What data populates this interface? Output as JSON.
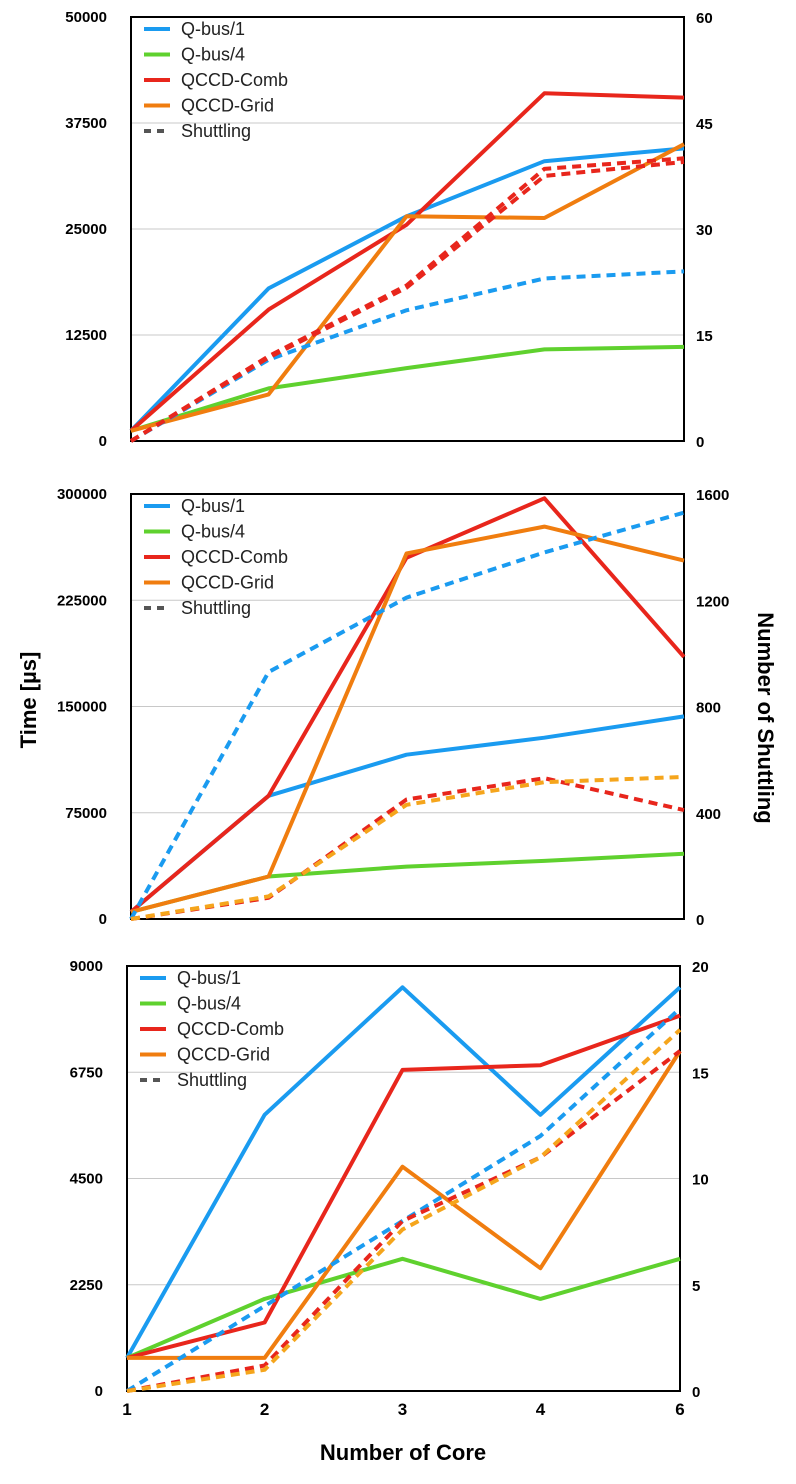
{
  "figure": {
    "ylabel_left": "Time [µs]",
    "ylabel_right": "Number of Shuttling",
    "xlabel": "Number of Core",
    "x_ticks": [
      "1",
      "2",
      "3",
      "4",
      "6"
    ]
  },
  "legend": [
    {
      "label": "Q-bus/1",
      "color": "#1a9bf0",
      "dashed": false
    },
    {
      "label": "Q-bus/4",
      "color": "#5fd12e",
      "dashed": false
    },
    {
      "label": "QCCD-Comb",
      "color": "#e8261c",
      "dashed": false
    },
    {
      "label": "QCCD-Grid",
      "color": "#f07d0f",
      "dashed": false
    },
    {
      "label": "Shuttling",
      "color": "#555555",
      "dashed": true
    }
  ],
  "chart_data": [
    {
      "type": "line",
      "categories": [
        "1",
        "2",
        "3",
        "4",
        "6"
      ],
      "ylim": [
        0,
        50000
      ],
      "yticks": [
        "0",
        "12500",
        "25000",
        "37500",
        "50000"
      ],
      "y2lim": [
        0,
        60
      ],
      "y2ticks": [
        "0",
        "15",
        "30",
        "45",
        "60"
      ],
      "grid": true,
      "legend_position": "top-left",
      "series": [
        {
          "name": "Q-bus/1",
          "axis": "left",
          "style": "solid",
          "color": "#1a9bf0",
          "values": [
            1200,
            18000,
            26500,
            33000,
            34500
          ]
        },
        {
          "name": "Q-bus/4",
          "axis": "left",
          "style": "solid",
          "color": "#5fd12e",
          "values": [
            1200,
            6200,
            8600,
            10800,
            11100
          ]
        },
        {
          "name": "QCCD-Comb",
          "axis": "left",
          "style": "solid",
          "color": "#e8261c",
          "values": [
            1200,
            15500,
            25500,
            41000,
            40500
          ]
        },
        {
          "name": "QCCD-Grid",
          "axis": "left",
          "style": "solid",
          "color": "#f07d0f",
          "values": [
            1200,
            5500,
            26500,
            26300,
            35000
          ]
        },
        {
          "name": "Q-bus/1",
          "axis": "right",
          "style": "dashed",
          "color": "#1a9bf0",
          "values": [
            0,
            11.5,
            18.5,
            23,
            24
          ]
        },
        {
          "name": "QCCD-Comb",
          "axis": "right",
          "style": "dashed",
          "color": "#e8261c",
          "values": [
            0,
            12,
            22,
            38.5,
            40
          ]
        },
        {
          "name": "QCCD-Grid",
          "axis": "right",
          "style": "dashed",
          "color": "#e8261c",
          "values": [
            0,
            11.8,
            21.7,
            37.5,
            39.5
          ]
        }
      ]
    },
    {
      "type": "line",
      "categories": [
        "1",
        "2",
        "3",
        "4",
        "6"
      ],
      "ylim": [
        0,
        300000
      ],
      "yticks": [
        "0",
        "75000",
        "150000",
        "225000",
        "300000"
      ],
      "y2lim": [
        0,
        1600
      ],
      "y2ticks": [
        "0",
        "400",
        "800",
        "1200",
        "1600"
      ],
      "grid": true,
      "legend_position": "top-left",
      "series": [
        {
          "name": "Q-bus/1",
          "axis": "left",
          "style": "solid",
          "color": "#1a9bf0",
          "values": [
            5000,
            87000,
            116000,
            128000,
            143000
          ]
        },
        {
          "name": "Q-bus/4",
          "axis": "left",
          "style": "solid",
          "color": "#5fd12e",
          "values": [
            5000,
            30000,
            37000,
            41000,
            46000
          ]
        },
        {
          "name": "QCCD-Comb",
          "axis": "left",
          "style": "solid",
          "color": "#e8261c",
          "values": [
            5000,
            87000,
            255000,
            297000,
            185000
          ]
        },
        {
          "name": "QCCD-Grid",
          "axis": "left",
          "style": "solid",
          "color": "#f07d0f",
          "values": [
            5000,
            30000,
            258000,
            277000,
            253000
          ]
        },
        {
          "name": "Q-bus/1",
          "axis": "right",
          "style": "dashed",
          "color": "#1a9bf0",
          "values": [
            0,
            930,
            1210,
            1380,
            1530
          ]
        },
        {
          "name": "QCCD-Comb",
          "axis": "right",
          "style": "dashed",
          "color": "#e8261c",
          "values": [
            0,
            80,
            450,
            530,
            410
          ]
        },
        {
          "name": "QCCD-Grid",
          "axis": "right",
          "style": "dashed",
          "color": "#f5a51c",
          "values": [
            0,
            85,
            430,
            515,
            535
          ]
        }
      ]
    },
    {
      "type": "line",
      "categories": [
        "1",
        "2",
        "3",
        "4",
        "6"
      ],
      "ylim": [
        0,
        9000
      ],
      "yticks": [
        "0",
        "2250",
        "4500",
        "6750",
        "9000"
      ],
      "y2lim": [
        0,
        20
      ],
      "y2ticks": [
        "0",
        "5",
        "10",
        "15",
        "20"
      ],
      "grid": true,
      "legend_position": "top-left",
      "series": [
        {
          "name": "Q-bus/1",
          "axis": "left",
          "style": "solid",
          "color": "#1a9bf0",
          "values": [
            700,
            5850,
            8550,
            5850,
            8550
          ]
        },
        {
          "name": "Q-bus/4",
          "axis": "left",
          "style": "solid",
          "color": "#5fd12e",
          "values": [
            700,
            1950,
            2800,
            1950,
            2800
          ]
        },
        {
          "name": "QCCD-Comb",
          "axis": "left",
          "style": "solid",
          "color": "#e8261c",
          "values": [
            700,
            1450,
            6800,
            6900,
            7950
          ]
        },
        {
          "name": "QCCD-Grid",
          "axis": "left",
          "style": "solid",
          "color": "#f07d0f",
          "values": [
            700,
            700,
            4750,
            2600,
            7200
          ]
        },
        {
          "name": "Q-bus/1",
          "axis": "right",
          "style": "dashed",
          "color": "#1a9bf0",
          "values": [
            0,
            4,
            8,
            12,
            18
          ]
        },
        {
          "name": "QCCD-Comb",
          "axis": "right",
          "style": "dashed",
          "color": "#e8261c",
          "values": [
            0,
            1.2,
            8,
            11,
            16
          ]
        },
        {
          "name": "QCCD-Grid",
          "axis": "right",
          "style": "dashed",
          "color": "#f5a51c",
          "values": [
            0,
            1,
            7.6,
            11,
            17
          ]
        }
      ]
    }
  ]
}
